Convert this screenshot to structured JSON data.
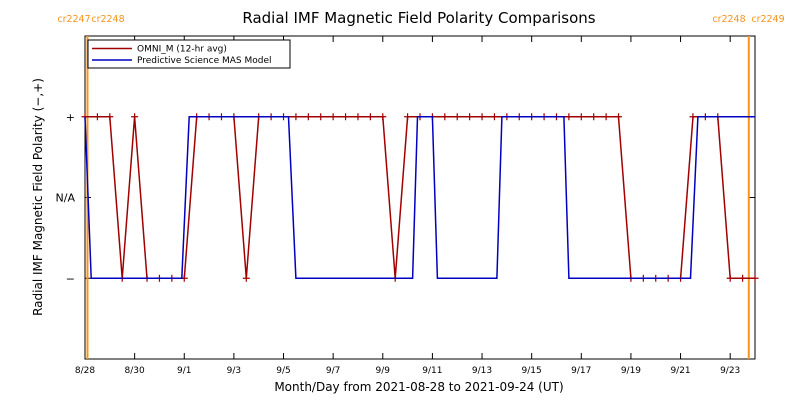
{
  "chart_data": {
    "type": "line",
    "title": "Radial IMF Magnetic Field Polarity Comparisons",
    "xlabel": "Month/Day from 2021-08-28 to 2021-09-24 (UT)",
    "ylabel": "Radial IMF Magnetic Field Polarity (−,+)",
    "x_range_days": [
      0,
      27
    ],
    "ylim": [
      -2,
      2
    ],
    "x_ticks": [
      {
        "day": 0,
        "label": "8/28"
      },
      {
        "day": 2,
        "label": "8/30"
      },
      {
        "day": 4,
        "label": "9/1"
      },
      {
        "day": 6,
        "label": "9/3"
      },
      {
        "day": 8,
        "label": "9/5"
      },
      {
        "day": 10,
        "label": "9/7"
      },
      {
        "day": 12,
        "label": "9/9"
      },
      {
        "day": 14,
        "label": "9/11"
      },
      {
        "day": 16,
        "label": "9/13"
      },
      {
        "day": 18,
        "label": "9/15"
      },
      {
        "day": 20,
        "label": "9/17"
      },
      {
        "day": 22,
        "label": "9/19"
      },
      {
        "day": 24,
        "label": "9/21"
      },
      {
        "day": 26,
        "label": "9/23"
      }
    ],
    "y_ticks": [
      {
        "value": 1,
        "label": "+"
      },
      {
        "value": 0,
        "label": "N/A"
      },
      {
        "value": -1,
        "label": "−"
      }
    ],
    "carrington_markers": [
      {
        "day": 0.1,
        "left_label": "cr2247",
        "right_label": "cr2248"
      },
      {
        "day": 26.75,
        "left_label": "cr2248",
        "right_label": "cr2249"
      }
    ],
    "legend": {
      "position": "top-left"
    },
    "series": [
      {
        "name": "OMNI_M (12-hr avg)",
        "color": "#a00000",
        "markers": "plus",
        "points": [
          [
            0.0,
            1
          ],
          [
            0.5,
            1
          ],
          [
            1.0,
            1
          ],
          [
            1.5,
            -1
          ],
          [
            2.0,
            1
          ],
          [
            2.5,
            -1
          ],
          [
            3.0,
            -1
          ],
          [
            3.5,
            -1
          ],
          [
            4.0,
            -1
          ],
          [
            4.5,
            1
          ],
          [
            5.0,
            1
          ],
          [
            5.5,
            1
          ],
          [
            6.0,
            1
          ],
          [
            6.5,
            -1
          ],
          [
            7.0,
            1
          ],
          [
            7.5,
            1
          ],
          [
            8.0,
            1
          ],
          [
            8.5,
            1
          ],
          [
            9.0,
            1
          ],
          [
            9.5,
            1
          ],
          [
            10.0,
            1
          ],
          [
            10.5,
            1
          ],
          [
            11.0,
            1
          ],
          [
            11.5,
            1
          ],
          [
            12.0,
            1
          ],
          [
            12.5,
            -1
          ],
          [
            13.0,
            1
          ],
          [
            13.5,
            1
          ],
          [
            14.0,
            1
          ],
          [
            14.5,
            1
          ],
          [
            15.0,
            1
          ],
          [
            15.5,
            1
          ],
          [
            16.0,
            1
          ],
          [
            16.5,
            1
          ],
          [
            17.0,
            1
          ],
          [
            17.5,
            1
          ],
          [
            18.0,
            1
          ],
          [
            18.5,
            1
          ],
          [
            19.0,
            1
          ],
          [
            19.5,
            1
          ],
          [
            20.0,
            1
          ],
          [
            20.5,
            1
          ],
          [
            21.0,
            1
          ],
          [
            21.5,
            1
          ],
          [
            22.0,
            -1
          ],
          [
            22.5,
            -1
          ],
          [
            23.0,
            -1
          ],
          [
            23.5,
            -1
          ],
          [
            24.0,
            -1
          ],
          [
            24.5,
            1
          ],
          [
            25.0,
            1
          ],
          [
            25.5,
            1
          ],
          [
            26.0,
            -1
          ],
          [
            26.5,
            -1
          ],
          [
            27.0,
            -1
          ]
        ]
      },
      {
        "name": "Predictive Science MAS Model",
        "color": "#0000c0",
        "markers": "none",
        "points": [
          [
            0.0,
            1
          ],
          [
            0.25,
            -1
          ],
          [
            3.9,
            -1
          ],
          [
            4.2,
            1
          ],
          [
            8.2,
            1
          ],
          [
            8.5,
            -1
          ],
          [
            13.2,
            -1
          ],
          [
            13.4,
            1
          ],
          [
            14.0,
            1
          ],
          [
            14.2,
            -1
          ],
          [
            16.6,
            -1
          ],
          [
            16.8,
            1
          ],
          [
            19.3,
            1
          ],
          [
            19.5,
            -1
          ],
          [
            24.4,
            -1
          ],
          [
            24.7,
            1
          ],
          [
            27.0,
            1
          ]
        ]
      }
    ]
  }
}
